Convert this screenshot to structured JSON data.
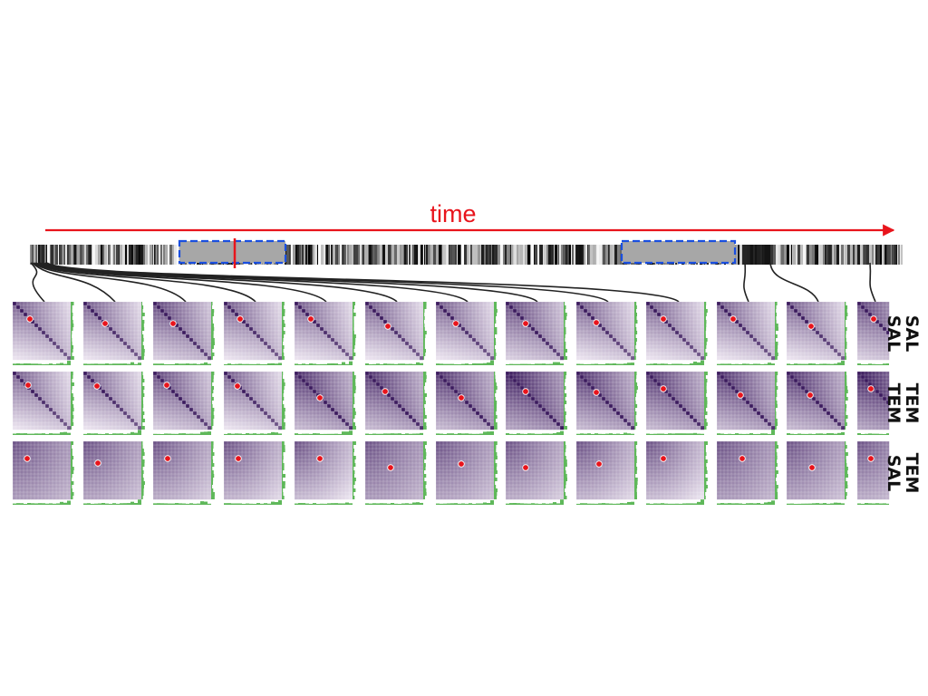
{
  "time_label": "time",
  "colors": {
    "arrow": "#e8141c",
    "marker": "#e8141c",
    "selection_box": "#1a4fe0",
    "selection_fill": "#a7a7a7",
    "matrix_dark": "#3c1b5e",
    "matrix_light": "#f3edf6",
    "histogram": "#5fb85a",
    "connector": "#222222"
  },
  "rows": [
    {
      "id": "sal-sal",
      "label_a": "SAL",
      "label_b": "SAL",
      "style": "diagonal"
    },
    {
      "id": "tem-tem",
      "label_a": "TEM",
      "label_b": "TEM",
      "style": "diagonal"
    },
    {
      "id": "tem-sal",
      "label_a": "TEM",
      "label_b": "SAL",
      "style": "smooth"
    }
  ],
  "column_count": 13,
  "timeline": {
    "selections": [
      {
        "id": "selection-1",
        "has_marker": true
      },
      {
        "id": "selection-2",
        "has_marker": false
      }
    ]
  }
}
